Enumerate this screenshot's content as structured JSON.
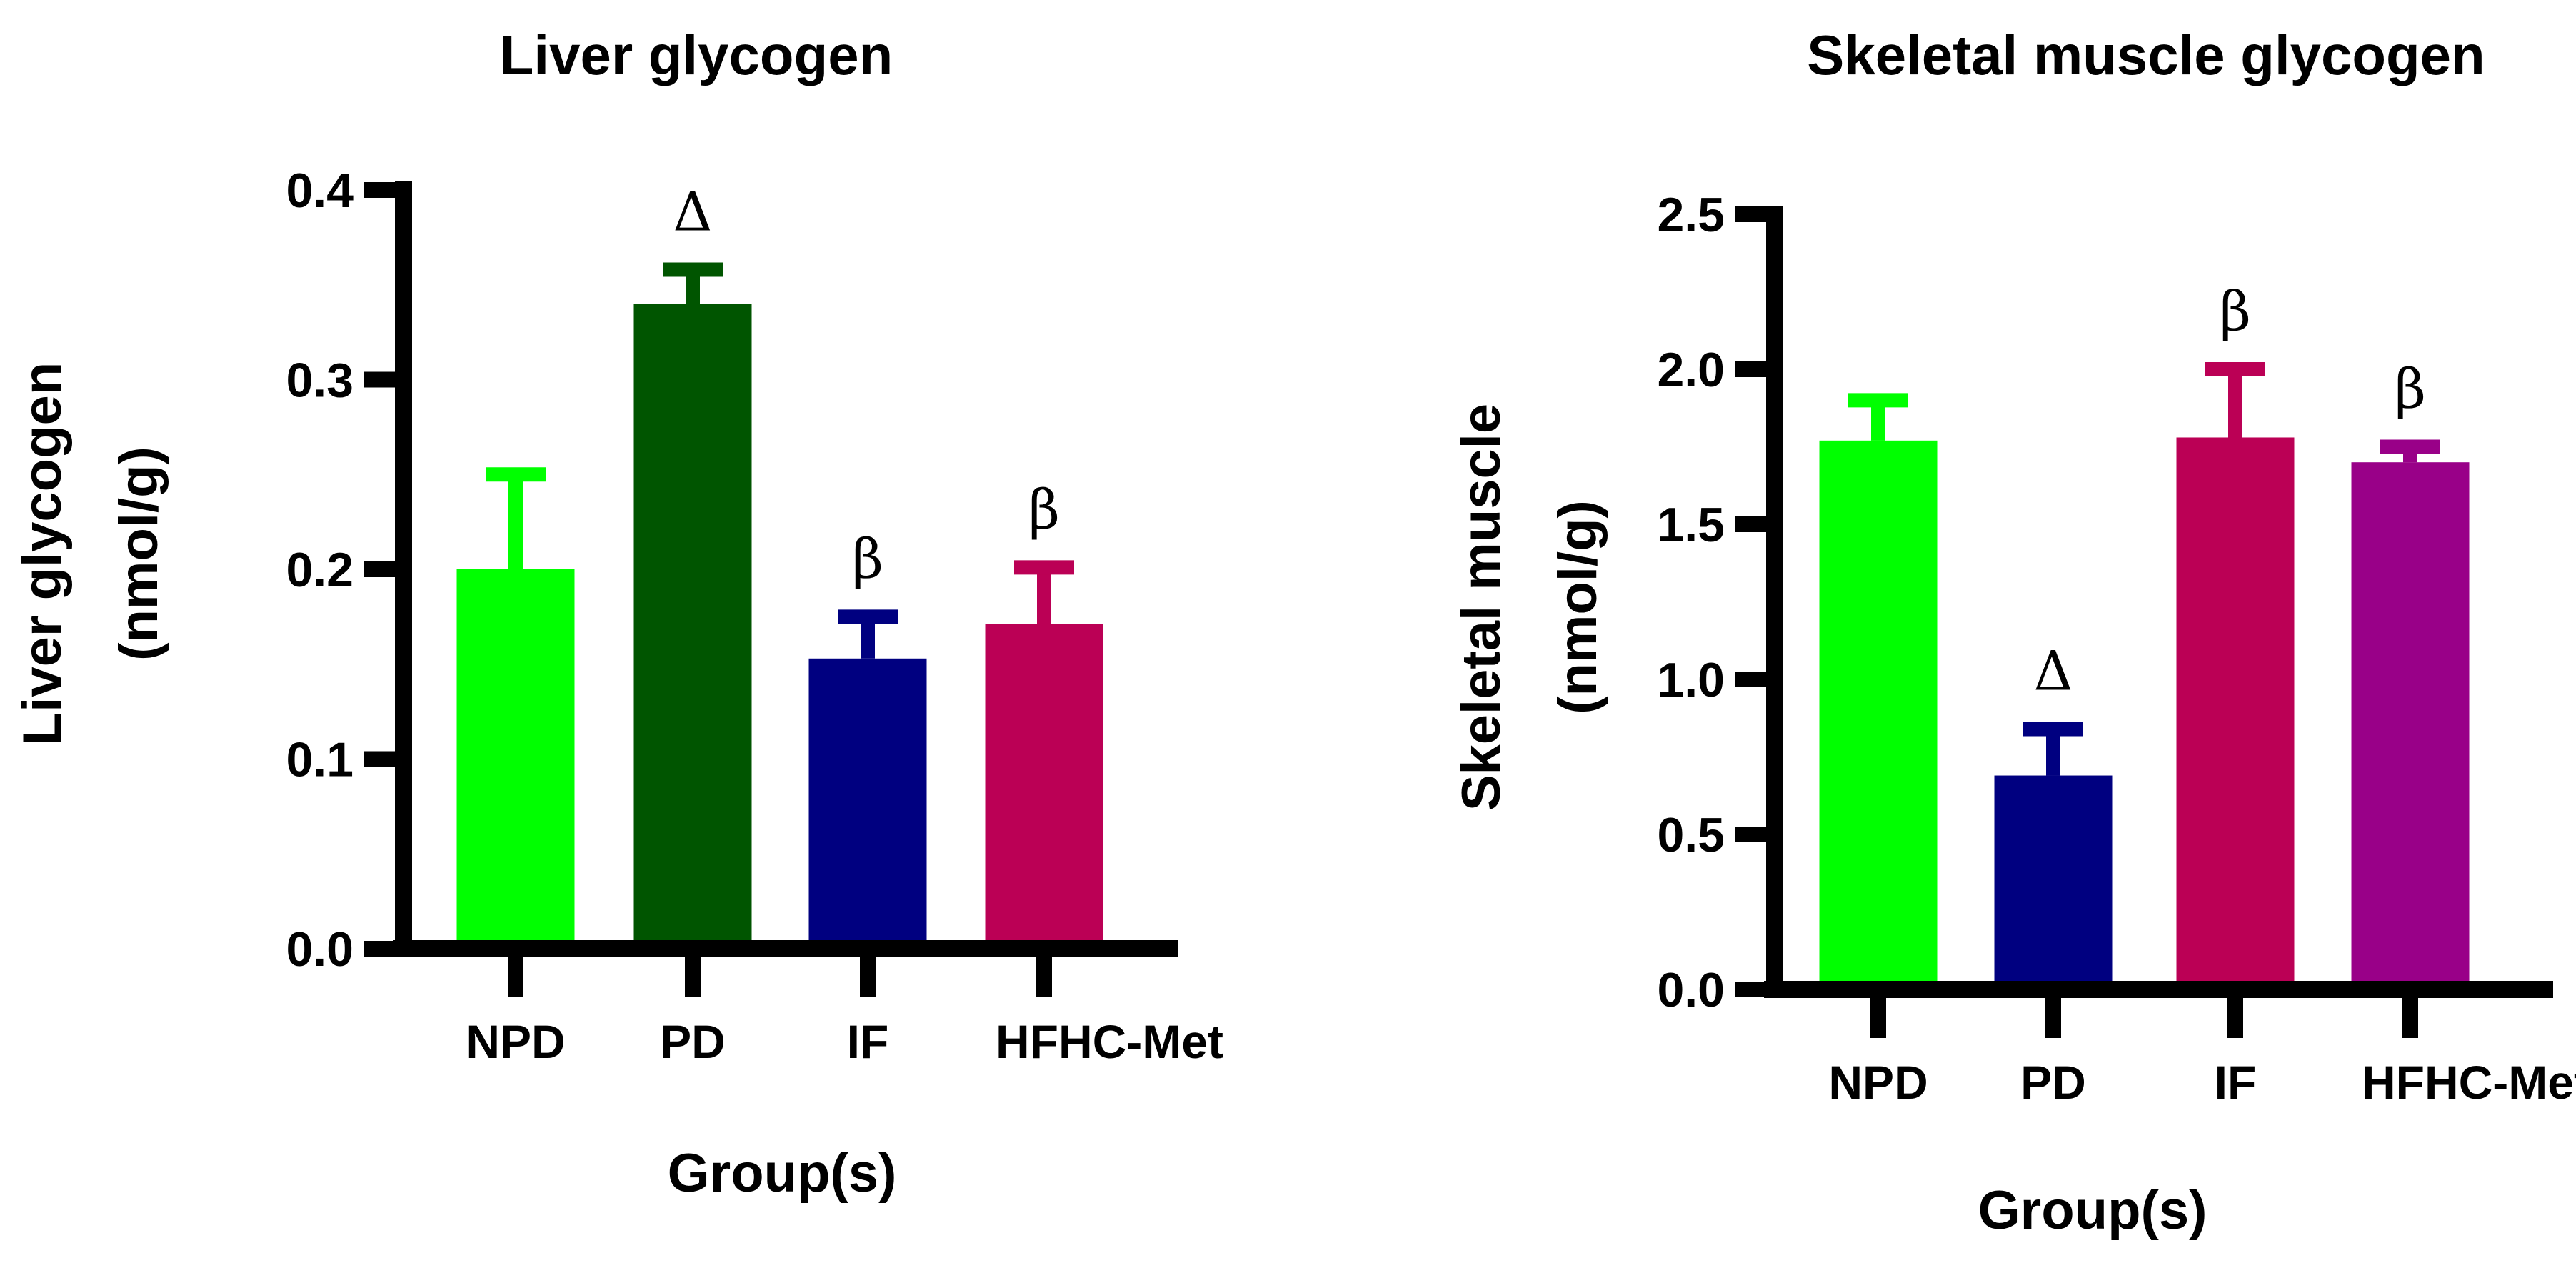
{
  "chart_data": [
    {
      "type": "bar",
      "title": "Liver glycogen",
      "xlabel": "Group(s)",
      "ylabel_lines": [
        "Liver glycogen",
        "(nmol/g)"
      ],
      "ylim": [
        0,
        0.4
      ],
      "yticks": [
        "0.0",
        "0.1",
        "0.2",
        "0.3",
        "0.4"
      ],
      "categories": [
        "NPD",
        "PD",
        "IF",
        "HFHC-Met"
      ],
      "values": [
        0.2,
        0.34,
        0.153,
        0.171
      ],
      "errors": [
        0.05,
        0.018,
        0.022,
        0.03
      ],
      "annotations": [
        "",
        "Δ",
        "β",
        "β"
      ],
      "colors": [
        "#00ff00",
        "#005500",
        "#000080",
        "#bb0055"
      ]
    },
    {
      "type": "bar",
      "title": "Skeletal muscle glycogen",
      "xlabel": "Group(s)",
      "ylabel_lines": [
        "Skeletal muscle",
        "(nmol/g)"
      ],
      "ylim": [
        0,
        2.5
      ],
      "yticks": [
        "0.0",
        "0.5",
        "1.0",
        "1.5",
        "2.0",
        "2.5"
      ],
      "categories": [
        "NPD",
        "PD",
        "IF",
        "HFHC-Met"
      ],
      "values": [
        1.77,
        0.69,
        1.78,
        1.7
      ],
      "errors": [
        0.13,
        0.15,
        0.22,
        0.05
      ],
      "annotations": [
        "",
        "Δ",
        "β",
        "β"
      ],
      "colors": [
        "#00ff00",
        "#000080",
        "#bb0055",
        "#990088"
      ]
    }
  ]
}
